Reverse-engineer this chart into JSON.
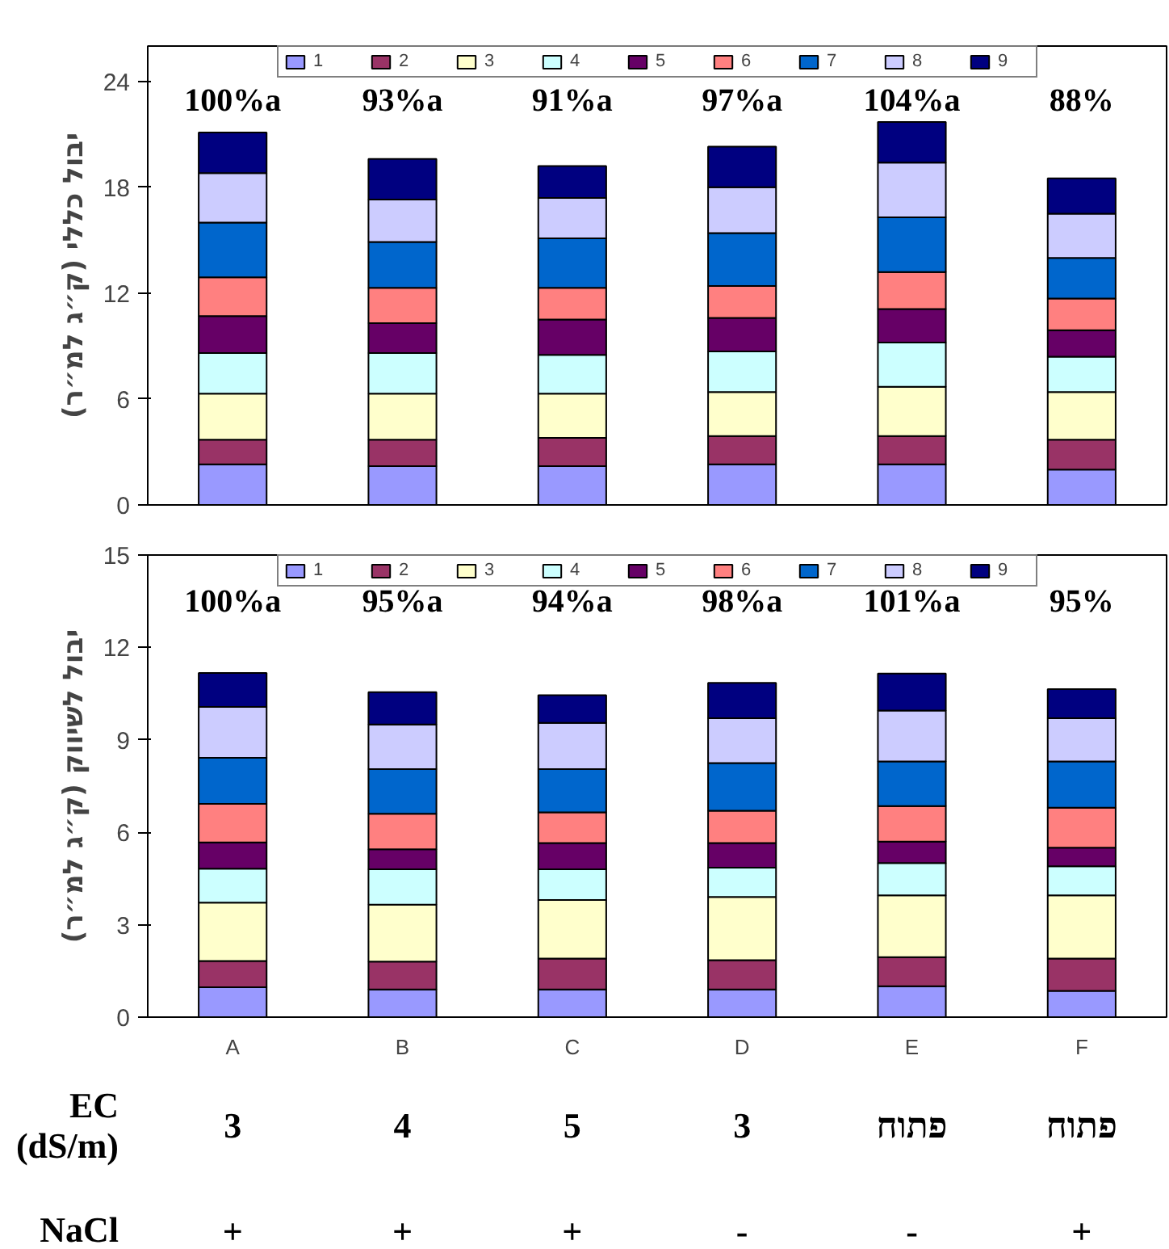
{
  "chart_data": [
    {
      "type": "bar",
      "stacked": true,
      "ylabel": "יבול כללי (ק״ג למ״ר)",
      "categories": [
        null,
        null,
        null,
        null,
        null,
        null
      ],
      "ylim": [
        0,
        26
      ],
      "yticks": [
        0,
        6,
        12,
        18,
        24
      ],
      "grid": false,
      "legend": "top",
      "series": [
        {
          "name": "1",
          "color": "#9999ff",
          "values": [
            2.3,
            2.2,
            2.2,
            2.3,
            2.3,
            2.0
          ]
        },
        {
          "name": "2",
          "color": "#993366",
          "values": [
            1.4,
            1.5,
            1.6,
            1.6,
            1.6,
            1.7
          ]
        },
        {
          "name": "3",
          "color": "#ffffcc",
          "values": [
            2.6,
            2.6,
            2.5,
            2.5,
            2.8,
            2.7
          ]
        },
        {
          "name": "4",
          "color": "#ccffff",
          "values": [
            2.3,
            2.3,
            2.2,
            2.3,
            2.5,
            2.0
          ]
        },
        {
          "name": "5",
          "color": "#660066",
          "values": [
            2.1,
            1.7,
            2.0,
            1.9,
            1.9,
            1.5
          ]
        },
        {
          "name": "6",
          "color": "#ff8080",
          "values": [
            2.2,
            2.0,
            1.8,
            1.8,
            2.1,
            1.8
          ]
        },
        {
          "name": "7",
          "color": "#0066cc",
          "values": [
            3.1,
            2.6,
            2.8,
            3.0,
            3.1,
            2.3
          ]
        },
        {
          "name": "8",
          "color": "#ccccff",
          "values": [
            2.8,
            2.4,
            2.3,
            2.6,
            3.1,
            2.5
          ]
        },
        {
          "name": "9",
          "color": "#000080",
          "values": [
            2.3,
            2.3,
            1.8,
            2.3,
            2.3,
            2.0
          ]
        }
      ],
      "annotations": [
        "100%a",
        "93%a",
        "91%a",
        "97%a",
        "104%a",
        "88%"
      ]
    },
    {
      "type": "bar",
      "stacked": true,
      "ylabel": "יבול לשיווק (ק״ג למ״ר)",
      "categories": [
        "A",
        "B",
        "C",
        "D",
        "E",
        "F"
      ],
      "ylim": [
        0,
        15
      ],
      "yticks": [
        0,
        3,
        6,
        9,
        12,
        15
      ],
      "grid": false,
      "legend": "top",
      "series": [
        {
          "name": "1",
          "color": "#9999ff",
          "values": [
            0.97,
            0.9,
            0.9,
            0.9,
            1.0,
            0.85
          ]
        },
        {
          "name": "2",
          "color": "#993366",
          "values": [
            0.85,
            0.9,
            1.0,
            0.95,
            0.95,
            1.05
          ]
        },
        {
          "name": "3",
          "color": "#ffffcc",
          "values": [
            1.9,
            1.85,
            1.9,
            2.05,
            2.0,
            2.05
          ]
        },
        {
          "name": "4",
          "color": "#ccffff",
          "values": [
            1.1,
            1.15,
            1.0,
            0.95,
            1.05,
            0.95
          ]
        },
        {
          "name": "5",
          "color": "#660066",
          "values": [
            0.85,
            0.65,
            0.85,
            0.8,
            0.7,
            0.6
          ]
        },
        {
          "name": "6",
          "color": "#ff8080",
          "values": [
            1.25,
            1.15,
            1.0,
            1.05,
            1.15,
            1.3
          ]
        },
        {
          "name": "7",
          "color": "#0066cc",
          "values": [
            1.5,
            1.45,
            1.4,
            1.55,
            1.45,
            1.5
          ]
        },
        {
          "name": "8",
          "color": "#ccccff",
          "values": [
            1.65,
            1.45,
            1.5,
            1.45,
            1.65,
            1.4
          ]
        },
        {
          "name": "9",
          "color": "#000080",
          "values": [
            1.1,
            1.05,
            0.9,
            1.15,
            1.2,
            0.95
          ]
        }
      ],
      "annotations": [
        "100%a",
        "95%a",
        "94%a",
        "98%a",
        "101%a",
        "95%"
      ]
    },
    {
      "type": "other",
      "annotations": [
        "EC\n(dS/m)",
        "3",
        "4",
        "5",
        "3",
        "פתוח",
        "פתוח",
        "NaCl",
        "+",
        "+",
        "+",
        "-",
        "-",
        "+"
      ]
    }
  ]
}
